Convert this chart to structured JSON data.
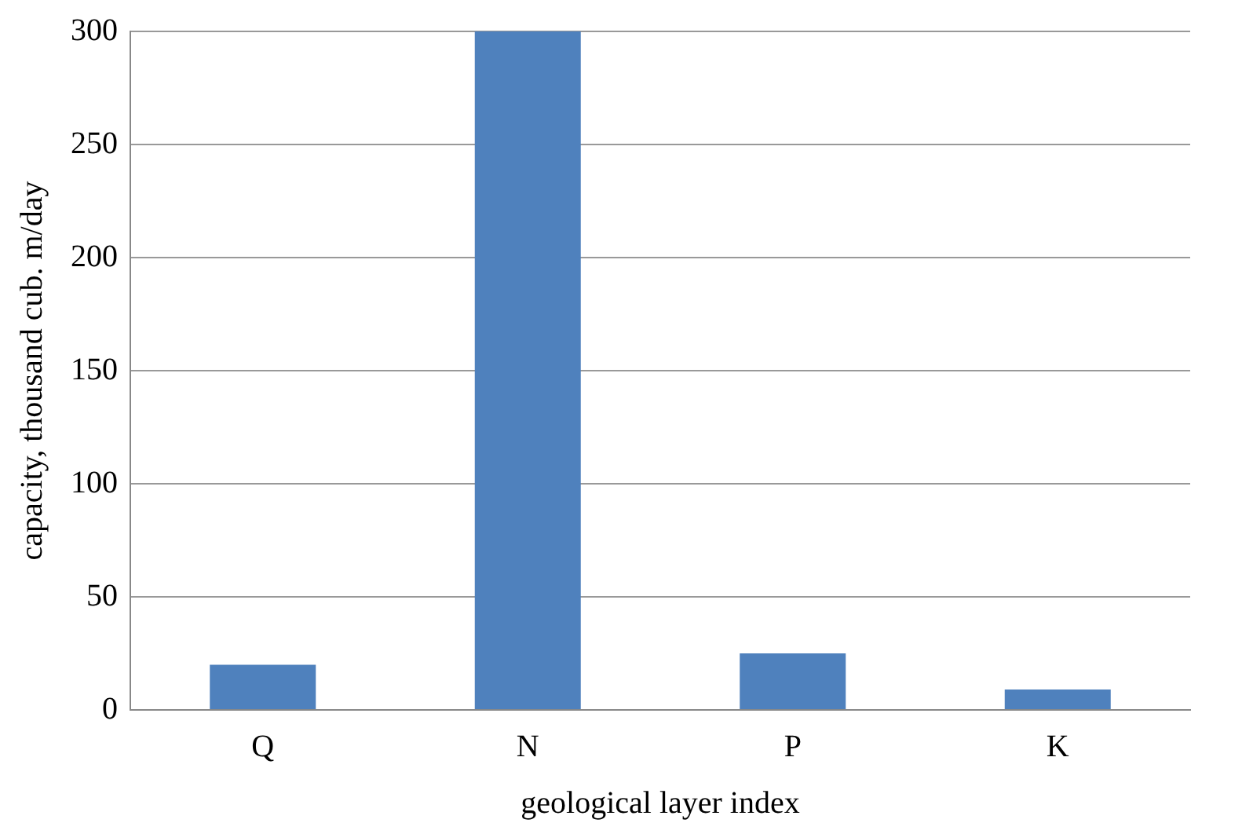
{
  "chart_data": {
    "type": "bar",
    "xlabel": "geological layer index",
    "ylabel": "capacity, thousand cub. m/day",
    "categories": [
      "Q",
      "N",
      "P",
      "K"
    ],
    "series": [
      {
        "color": "#4f81bd",
        "values": [
          20,
          300,
          25,
          9
        ]
      }
    ],
    "ylim": [
      0,
      300
    ],
    "yticks": [
      0,
      50,
      100,
      150,
      200,
      250,
      300
    ],
    "grid": "y",
    "legend": false
  }
}
